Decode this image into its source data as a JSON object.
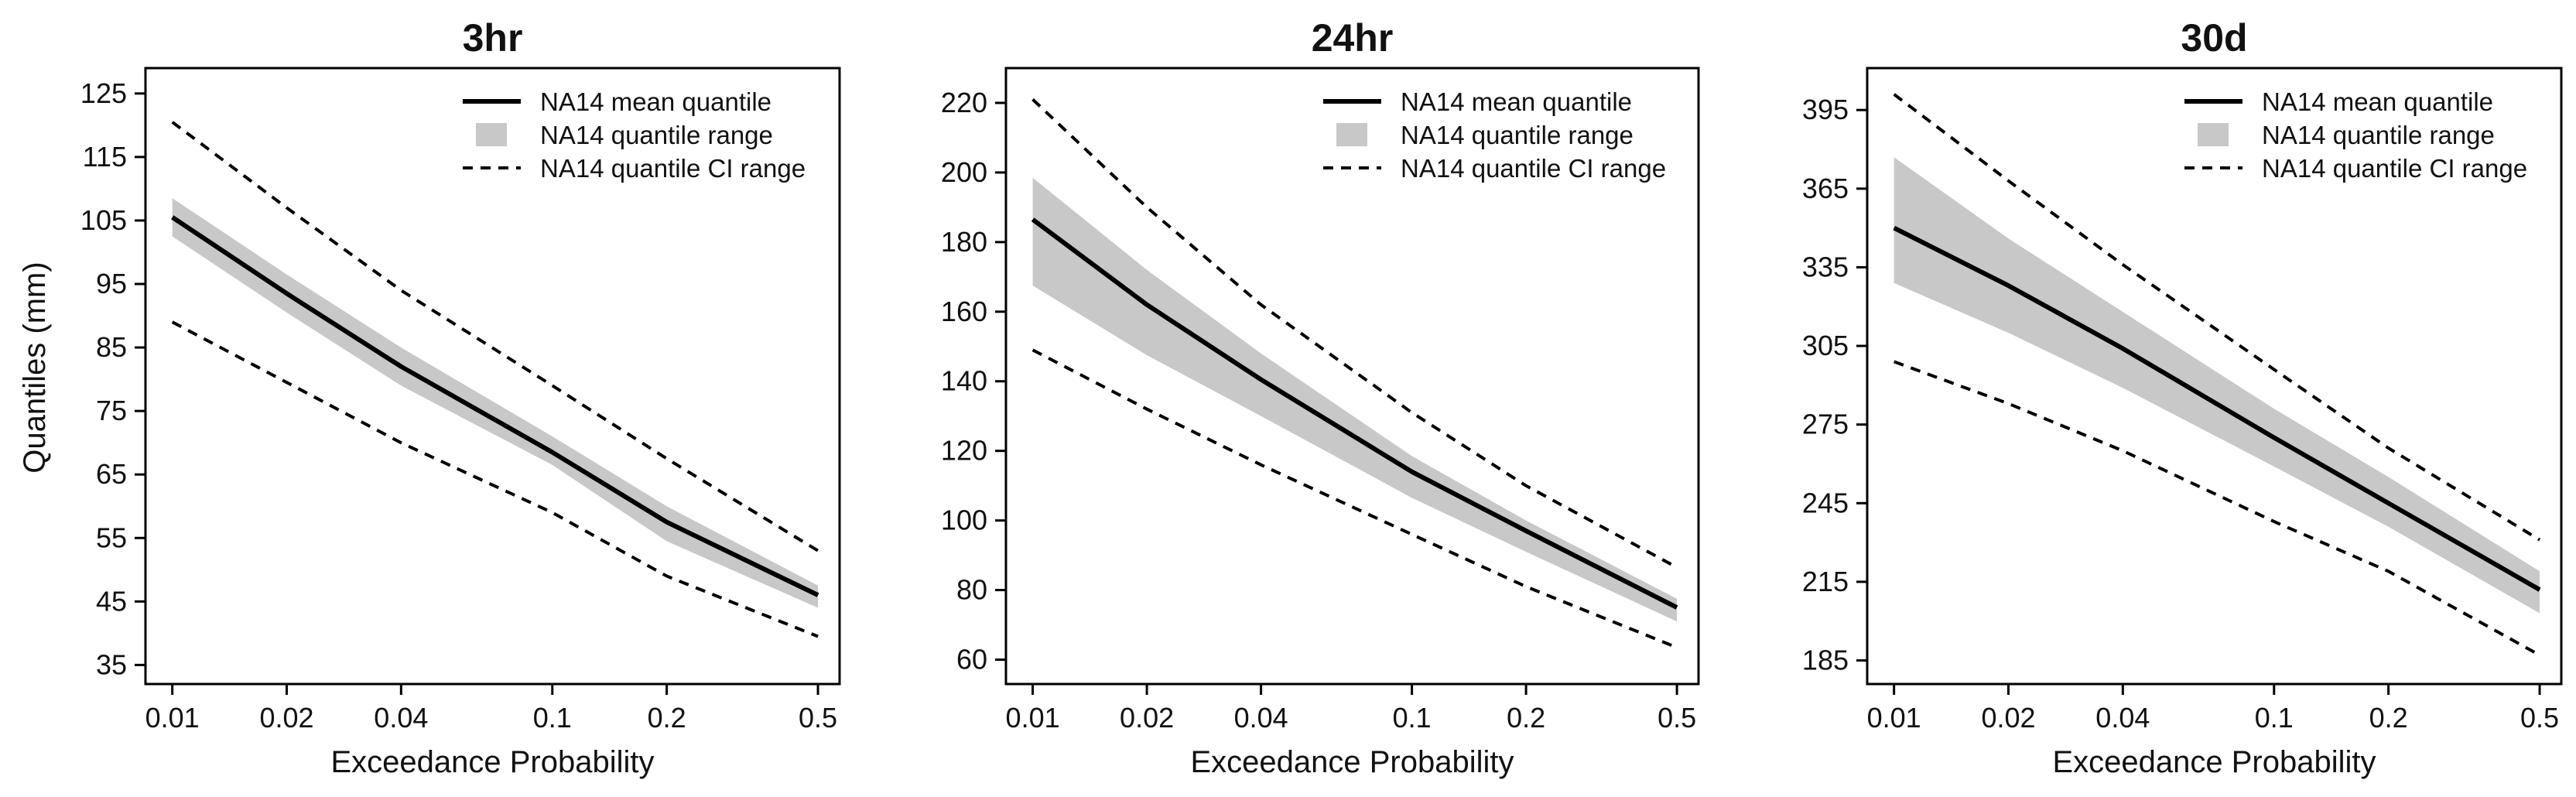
{
  "figure": {
    "ylabel": "Quantiles (mm)"
  },
  "colors": {
    "mean_line": "#000000",
    "quantile_band": "#c8c8c8",
    "ci_line": "#000000",
    "axis": "#000000"
  },
  "chart_data": [
    {
      "type": "line",
      "title": "3hr",
      "xlabel": "Exceedance Probability",
      "ylabel": "Quantiles (mm)",
      "xscale": "log",
      "x": [
        0.01,
        0.02,
        0.04,
        0.1,
        0.2,
        0.5
      ],
      "xticklabels": [
        "0.01",
        "0.02",
        "0.04",
        "0.1",
        "0.2",
        "0.5"
      ],
      "xlim": [
        0.0085,
        0.57
      ],
      "ylim": [
        32,
        129
      ],
      "yticks": [
        35,
        45,
        55,
        65,
        75,
        85,
        95,
        105,
        115,
        125
      ],
      "legend": {
        "position": "top-right",
        "entries": [
          "NA14 mean quantile",
          "NA14 quantile range",
          "NA14 quantile CI range"
        ]
      },
      "series": [
        {
          "name": "NA14 mean quantile",
          "values": [
            105.5,
            93.5,
            82,
            68.5,
            57.5,
            46
          ]
        },
        {
          "name": "NA14 quantile range (upper)",
          "values": [
            108.5,
            96.5,
            85,
            71,
            60,
            47.5
          ]
        },
        {
          "name": "NA14 quantile range (lower)",
          "values": [
            102.5,
            90.5,
            79,
            66.5,
            54.5,
            44
          ]
        },
        {
          "name": "NA14 quantile CI range (upper)",
          "values": [
            120.5,
            107,
            94,
            79,
            67.5,
            53
          ]
        },
        {
          "name": "NA14 quantile CI range (lower)",
          "values": [
            89,
            79.5,
            70,
            59,
            49,
            39.5
          ]
        }
      ]
    },
    {
      "type": "line",
      "title": "24hr",
      "xlabel": "Exceedance Probability",
      "ylabel": "",
      "xscale": "log",
      "x": [
        0.01,
        0.02,
        0.04,
        0.1,
        0.2,
        0.5
      ],
      "xticklabels": [
        "0.01",
        "0.02",
        "0.04",
        "0.1",
        "0.2",
        "0.5"
      ],
      "xlim": [
        0.0085,
        0.57
      ],
      "ylim": [
        53,
        230
      ],
      "yticks": [
        60,
        80,
        100,
        120,
        140,
        160,
        180,
        200,
        220
      ],
      "legend": {
        "position": "top-right",
        "entries": [
          "NA14 mean quantile",
          "NA14 quantile range",
          "NA14 quantile CI range"
        ]
      },
      "series": [
        {
          "name": "NA14 mean quantile",
          "values": [
            186.5,
            162,
            140.5,
            114,
            97,
            75
          ]
        },
        {
          "name": "NA14 quantile range (upper)",
          "values": [
            198.5,
            172,
            148,
            118.5,
            100,
            77.5
          ]
        },
        {
          "name": "NA14 quantile range (lower)",
          "values": [
            167.5,
            147.5,
            130,
            106.5,
            91,
            71
          ]
        },
        {
          "name": "NA14 quantile CI range (upper)",
          "values": [
            221,
            190,
            162,
            131,
            110,
            86.5
          ]
        },
        {
          "name": "NA14 quantile CI range (lower)",
          "values": [
            149,
            132,
            116,
            96,
            81,
            63.5
          ]
        }
      ]
    },
    {
      "type": "line",
      "title": "30d",
      "xlabel": "Exceedance Probability",
      "ylabel": "",
      "xscale": "log",
      "x": [
        0.01,
        0.02,
        0.04,
        0.1,
        0.2,
        0.5
      ],
      "xticklabels": [
        "0.01",
        "0.02",
        "0.04",
        "0.1",
        "0.2",
        "0.5"
      ],
      "xlim": [
        0.0085,
        0.57
      ],
      "ylim": [
        176,
        411
      ],
      "yticks": [
        185,
        215,
        245,
        275,
        305,
        335,
        365,
        395
      ],
      "legend": {
        "position": "top-right",
        "entries": [
          "NA14 mean quantile",
          "NA14 quantile range",
          "NA14 quantile CI range"
        ]
      },
      "series": [
        {
          "name": "NA14 mean quantile",
          "values": [
            350,
            328,
            304,
            270,
            245,
            212
          ]
        },
        {
          "name": "NA14 quantile range (upper)",
          "values": [
            377,
            346,
            318,
            281,
            255,
            219
          ]
        },
        {
          "name": "NA14 quantile range (lower)",
          "values": [
            329,
            310,
            289,
            259,
            236,
            203
          ]
        },
        {
          "name": "NA14 quantile CI range (upper)",
          "values": [
            401,
            368,
            336,
            296,
            266,
            231
          ]
        },
        {
          "name": "NA14 quantile CI range (lower)",
          "values": [
            299,
            283,
            265,
            238,
            219,
            187
          ]
        }
      ]
    }
  ]
}
